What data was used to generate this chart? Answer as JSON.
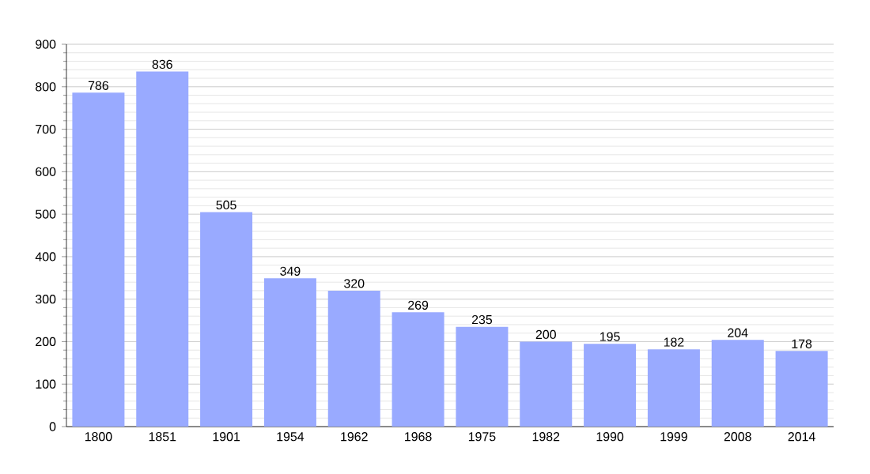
{
  "chart_data": {
    "type": "bar",
    "categories": [
      "1800",
      "1851",
      "1901",
      "1954",
      "1962",
      "1968",
      "1975",
      "1982",
      "1990",
      "1999",
      "2008",
      "2014"
    ],
    "values": [
      786,
      836,
      505,
      349,
      320,
      269,
      235,
      200,
      195,
      182,
      204,
      178
    ],
    "color": "#99aaff",
    "ylim": [
      0,
      900
    ],
    "yticks": [
      0,
      100,
      200,
      300,
      400,
      500,
      600,
      700,
      800,
      900
    ],
    "grid": "y",
    "data_labels": true
  }
}
